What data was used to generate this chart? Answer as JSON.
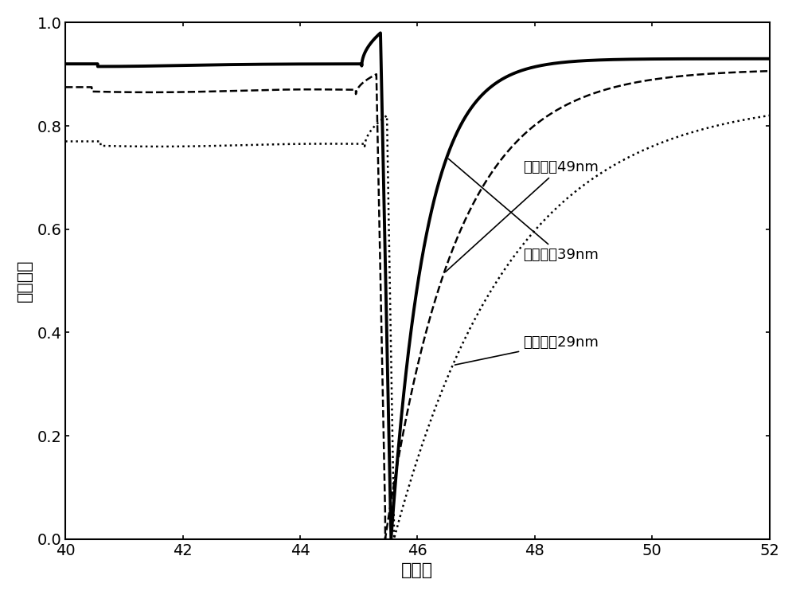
{
  "title": "",
  "xlabel": "入射角",
  "ylabel": "反射概率",
  "xlim": [
    40,
    52
  ],
  "ylim": [
    0.0,
    1.0
  ],
  "xticks": [
    40,
    42,
    44,
    46,
    48,
    50,
    52
  ],
  "yticks": [
    0.0,
    0.2,
    0.4,
    0.6,
    0.8,
    1.0
  ],
  "labels": {
    "49nm": "金属膜厕49nm",
    "39nm": "金属膜厕39nm",
    "29nm": "金属膜厕29nm"
  },
  "annot_text_pos": {
    "49nm": [
      47.8,
      0.72
    ],
    "39nm": [
      47.8,
      0.55
    ],
    "29nm": [
      47.8,
      0.38
    ]
  },
  "annot_arrow_pos": {
    "49nm": [
      46.45,
      0.65
    ],
    "39nm": [
      46.5,
      0.48
    ],
    "29nm": [
      46.6,
      0.32
    ]
  },
  "colors": {
    "49nm": "#000000",
    "39nm": "#000000",
    "29nm": "#000000"
  },
  "line_styles": {
    "49nm": "--",
    "39nm": "-",
    "29nm": ":"
  },
  "line_widths": {
    "49nm": 1.8,
    "39nm": 2.8,
    "29nm": 1.8
  },
  "background_color": "#ffffff",
  "font_size_labels": 16,
  "font_size_ticks": 14,
  "font_size_annotations": 13
}
